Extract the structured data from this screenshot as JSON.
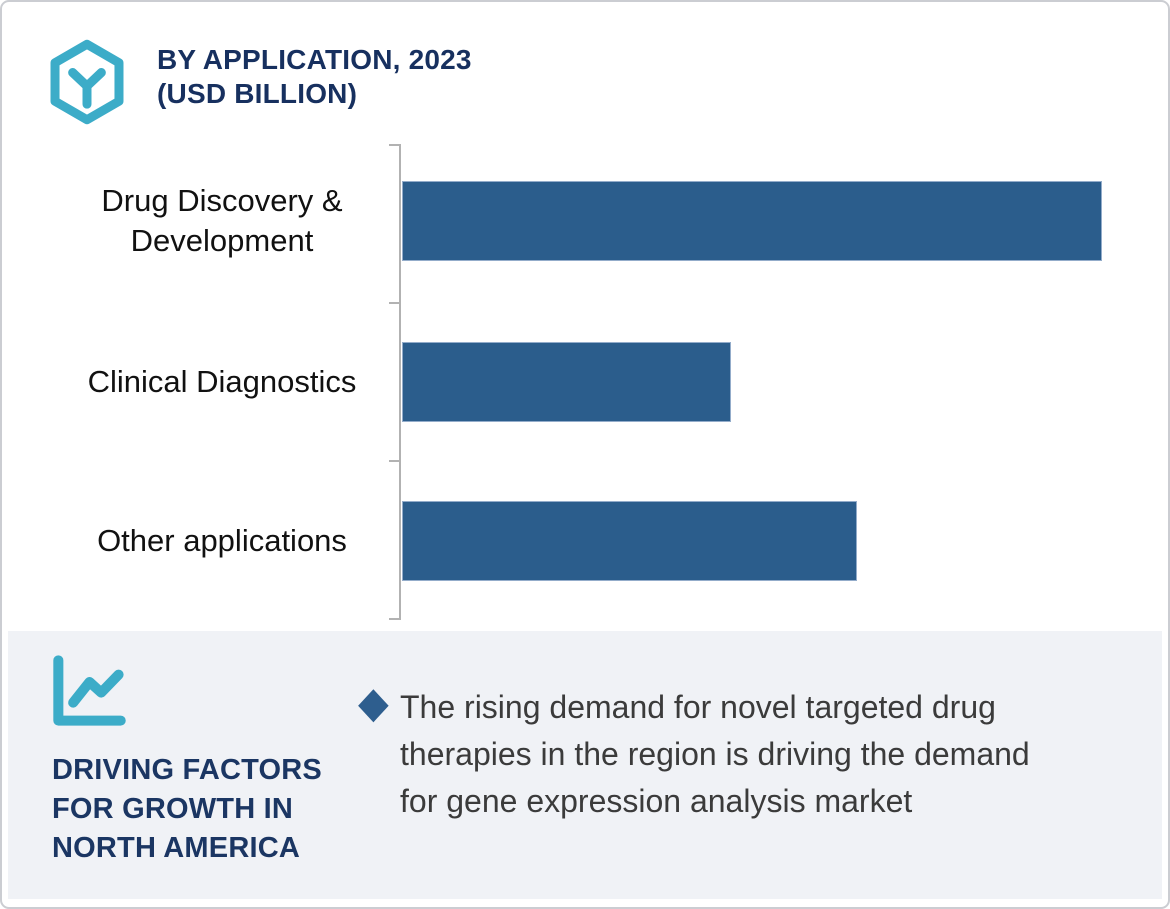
{
  "header": {
    "title_line1": "BY APPLICATION, 2023",
    "title_line2": "(USD BILLION)",
    "icon": "hexagon-y-brand-icon"
  },
  "chart_data": {
    "type": "bar",
    "orientation": "horizontal",
    "title": "BY APPLICATION, 2023",
    "subtitle": "(USD BILLION)",
    "unit": "USD Billion",
    "categories": [
      "Drug Discovery & Development",
      "Clinical Diagnostics",
      "Other applications"
    ],
    "values_pct_of_max": [
      100,
      47,
      65
    ],
    "value_axis_labels_visible": false,
    "value_labels_shown": false,
    "gridlines": false,
    "legend": "none",
    "bar_color": "#2b5d8c",
    "axis_color": "#b2b2b2"
  },
  "driving_factors": {
    "icon": "line-chart-icon",
    "heading_lines": [
      "DRIVING FACTORS",
      "FOR GROWTH IN",
      "NORTH AMERICA"
    ],
    "bullet": {
      "marker": "◆",
      "lines": [
        "The rising demand for novel targeted drug",
        "therapies in the region is driving the demand",
        "for gene expression analysis market"
      ]
    }
  },
  "colors": {
    "teal": "#3cacc8",
    "navy_title": "#17305f",
    "navy_heading": "#1b3663",
    "bar_blue": "#2b5d8c",
    "diamond_blue": "#2e5e8e",
    "panel_background": "#f0f2f6",
    "card_border": "#cbcdd2",
    "body_text": "#3b3b3b"
  }
}
